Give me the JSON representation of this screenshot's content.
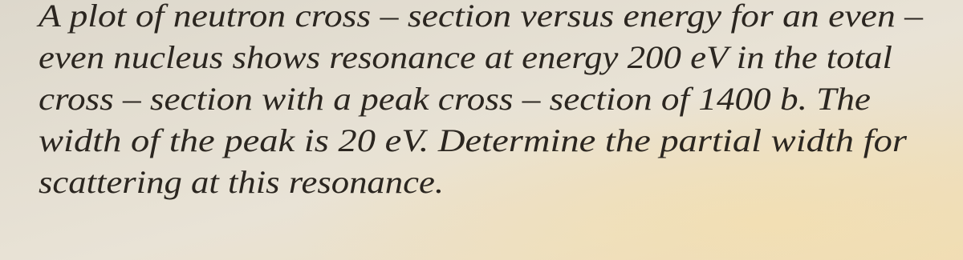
{
  "problem": {
    "lines": [
      "A plot of neutron cross – section versus energy for an even –",
      "even nucleus shows resonance at energy 200 eV in the total",
      "cross – section with a peak cross – section of 1400 b. The",
      "width of the peak is 20 eV. Determine the partial width for",
      "scattering at this resonance."
    ]
  }
}
